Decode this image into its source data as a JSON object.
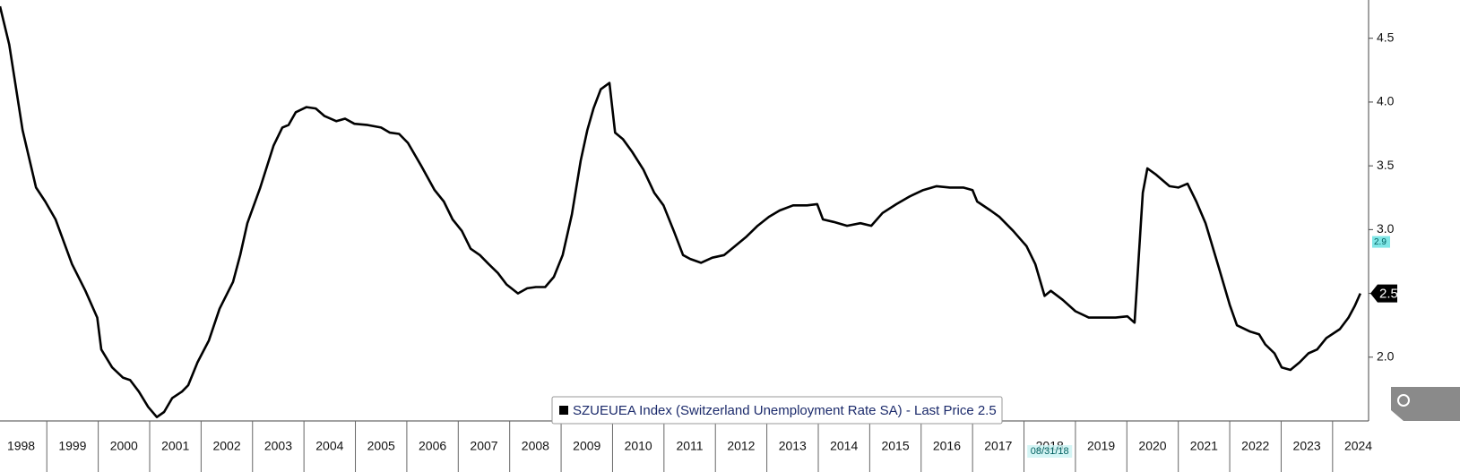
{
  "chart_data": {
    "type": "line",
    "legend": "SZUEUEA Index (Switzerland Unemployment Rate SA) - Last Price 2.5",
    "series": [
      {
        "name": "SZUEUEA Index",
        "color": "#000000",
        "x": [
          1998.09,
          1998.27,
          1998.53,
          1998.79,
          1998.97,
          1999.17,
          1999.49,
          1999.75,
          1999.98,
          2000.06,
          2000.27,
          2000.48,
          2000.62,
          2000.79,
          2000.97,
          2001.14,
          2001.28,
          2001.44,
          2001.63,
          2001.75,
          2001.93,
          2002.15,
          2002.36,
          2002.62,
          2002.76,
          2002.9,
          2003.15,
          2003.41,
          2003.58,
          2003.7,
          2003.84,
          2004.05,
          2004.23,
          2004.4,
          2004.63,
          2004.8,
          2004.98,
          2005.24,
          2005.5,
          2005.67,
          2005.85,
          2006.02,
          2006.28,
          2006.54,
          2006.72,
          2006.89,
          2007.07,
          2007.24,
          2007.42,
          2007.59,
          2007.77,
          2007.94,
          2008.16,
          2008.34,
          2008.51,
          2008.69,
          2008.86,
          2009.03,
          2009.21,
          2009.38,
          2009.51,
          2009.63,
          2009.77,
          2009.94,
          2010.05,
          2010.2,
          2010.38,
          2010.6,
          2010.81,
          2010.99,
          2011.2,
          2011.37,
          2011.51,
          2011.72,
          2011.94,
          2012.17,
          2012.38,
          2012.59,
          2012.82,
          2013.04,
          2013.25,
          2013.51,
          2013.78,
          2013.98,
          2014.09,
          2014.3,
          2014.56,
          2014.82,
          2015.03,
          2015.25,
          2015.52,
          2015.78,
          2016.04,
          2016.3,
          2016.56,
          2016.82,
          2017.0,
          2017.09,
          2017.35,
          2017.52,
          2017.79,
          2018.05,
          2018.22,
          2018.4,
          2018.52,
          2018.75,
          2019.0,
          2019.26,
          2019.52,
          2019.78,
          2020.01,
          2020.15,
          2020.31,
          2020.4,
          2020.57,
          2020.83,
          2021.0,
          2021.18,
          2021.35,
          2021.53,
          2021.79,
          2022.0,
          2022.14,
          2022.4,
          2022.57,
          2022.69,
          2022.87,
          2023.01,
          2023.18,
          2023.36,
          2023.53,
          2023.7,
          2023.88,
          2024.14,
          2024.31,
          2024.43,
          2024.54
        ],
        "values": [
          4.75,
          4.45,
          3.78,
          3.33,
          3.22,
          3.08,
          2.73,
          2.52,
          2.31,
          2.06,
          1.92,
          1.84,
          1.82,
          1.73,
          1.61,
          1.53,
          1.57,
          1.68,
          1.73,
          1.78,
          1.96,
          2.13,
          2.38,
          2.59,
          2.8,
          3.05,
          3.33,
          3.66,
          3.8,
          3.82,
          3.92,
          3.96,
          3.95,
          3.89,
          3.85,
          3.87,
          3.83,
          3.82,
          3.8,
          3.76,
          3.75,
          3.68,
          3.5,
          3.31,
          3.22,
          3.08,
          2.99,
          2.85,
          2.8,
          2.73,
          2.66,
          2.57,
          2.5,
          2.54,
          2.55,
          2.55,
          2.63,
          2.8,
          3.12,
          3.54,
          3.78,
          3.95,
          4.1,
          4.15,
          3.76,
          3.71,
          3.61,
          3.47,
          3.29,
          3.19,
          2.98,
          2.8,
          2.77,
          2.74,
          2.78,
          2.8,
          2.87,
          2.94,
          3.03,
          3.1,
          3.15,
          3.19,
          3.19,
          3.2,
          3.08,
          3.06,
          3.03,
          3.05,
          3.03,
          3.13,
          3.2,
          3.26,
          3.31,
          3.34,
          3.33,
          3.33,
          3.31,
          3.22,
          3.15,
          3.1,
          2.99,
          2.87,
          2.73,
          2.48,
          2.52,
          2.45,
          2.36,
          2.31,
          2.31,
          2.31,
          2.32,
          2.27,
          3.29,
          3.48,
          3.43,
          3.34,
          3.33,
          3.36,
          3.22,
          3.05,
          2.7,
          2.41,
          2.25,
          2.2,
          2.18,
          2.1,
          2.03,
          1.92,
          1.9,
          1.96,
          2.03,
          2.06,
          2.15,
          2.22,
          2.31,
          2.4,
          2.5
        ]
      }
    ],
    "xlim": [
      1998.09,
      2024.7
    ],
    "xticks": [
      1998,
      1999,
      2000,
      2001,
      2002,
      2003,
      2004,
      2005,
      2006,
      2007,
      2008,
      2009,
      2010,
      2011,
      2012,
      2013,
      2014,
      2015,
      2016,
      2017,
      2018,
      2019,
      2020,
      2021,
      2022,
      2023,
      2024
    ],
    "ylim": [
      1.5,
      4.8
    ],
    "yticks": [
      {
        "value": 2,
        "label": "2.0"
      },
      2.5,
      {
        "value": 3,
        "label": "3.0"
      },
      3.5,
      {
        "value": 4,
        "label": "4.0"
      },
      4.5
    ],
    "markers": [
      {
        "value": 2.9,
        "label": "2.9",
        "color": "#7fe6e6"
      },
      {
        "value": 2.5,
        "label": "2.5",
        "color": "#000000"
      }
    ],
    "date_annotation": "08/31/18"
  }
}
